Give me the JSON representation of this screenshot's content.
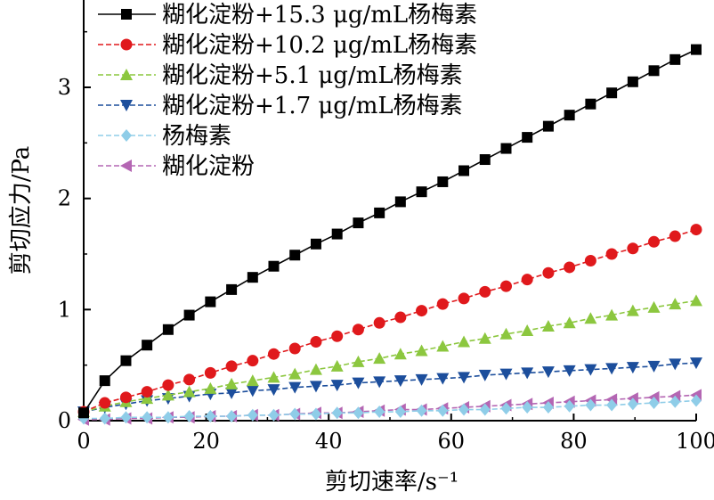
{
  "chart_data": {
    "type": "line",
    "title": "",
    "xlabel": "剪切速率/s⁻¹",
    "ylabel": "剪切应力/Pa",
    "xlim": [
      0,
      100
    ],
    "ylim": [
      0,
      3.6
    ],
    "xticks": [
      "0",
      "20",
      "40",
      "60",
      "80",
      "100"
    ],
    "yticks": [
      "0",
      "1",
      "2",
      "3"
    ],
    "legend_position": "top-left",
    "grid": false,
    "x": [
      0,
      3.45,
      6.9,
      10.34,
      13.79,
      17.24,
      20.69,
      24.14,
      27.59,
      31.03,
      34.48,
      37.93,
      41.38,
      44.83,
      48.28,
      51.72,
      55.17,
      58.62,
      62.07,
      65.52,
      68.97,
      72.41,
      75.86,
      79.31,
      82.76,
      86.21,
      89.66,
      93.1,
      96.55,
      100
    ],
    "series": [
      {
        "name": "糊化淀粉+15.3 μg/mL杨梅素",
        "marker": "square",
        "color": "#000000",
        "values": [
          0.07,
          0.36,
          0.54,
          0.68,
          0.82,
          0.95,
          1.07,
          1.18,
          1.29,
          1.39,
          1.49,
          1.59,
          1.68,
          1.78,
          1.87,
          1.97,
          2.06,
          2.15,
          2.25,
          2.35,
          2.45,
          2.55,
          2.65,
          2.75,
          2.85,
          2.95,
          3.05,
          3.15,
          3.25,
          3.34
        ]
      },
      {
        "name": "糊化淀粉+10.2 μg/mL杨梅素",
        "marker": "circle",
        "color": "#e0191c",
        "values": [
          0.08,
          0.16,
          0.21,
          0.26,
          0.32,
          0.37,
          0.43,
          0.49,
          0.54,
          0.6,
          0.65,
          0.71,
          0.76,
          0.82,
          0.88,
          0.93,
          0.99,
          1.05,
          1.1,
          1.16,
          1.21,
          1.27,
          1.33,
          1.38,
          1.44,
          1.5,
          1.55,
          1.61,
          1.66,
          1.72
        ]
      },
      {
        "name": "糊化淀粉+5.1 μg/mL杨梅素",
        "marker": "triangle-up",
        "color": "#8cc73f",
        "values": [
          0.08,
          0.13,
          0.17,
          0.2,
          0.23,
          0.26,
          0.29,
          0.33,
          0.36,
          0.39,
          0.42,
          0.46,
          0.49,
          0.53,
          0.56,
          0.6,
          0.63,
          0.67,
          0.71,
          0.74,
          0.78,
          0.81,
          0.85,
          0.88,
          0.92,
          0.95,
          0.99,
          1.02,
          1.05,
          1.08
        ]
      },
      {
        "name": "糊化淀粉+1.7 μg/mL杨梅素",
        "marker": "triangle-down",
        "color": "#1c4e9c",
        "values": [
          0.08,
          0.12,
          0.15,
          0.18,
          0.2,
          0.22,
          0.24,
          0.25,
          0.27,
          0.28,
          0.3,
          0.31,
          0.32,
          0.34,
          0.35,
          0.36,
          0.37,
          0.38,
          0.39,
          0.41,
          0.42,
          0.43,
          0.44,
          0.45,
          0.46,
          0.47,
          0.48,
          0.49,
          0.51,
          0.52
        ]
      },
      {
        "name": "杨梅素",
        "marker": "diamond",
        "color": "#8fcde8",
        "values": [
          0.02,
          0.02,
          0.03,
          0.03,
          0.03,
          0.04,
          0.04,
          0.04,
          0.05,
          0.05,
          0.06,
          0.06,
          0.07,
          0.07,
          0.08,
          0.08,
          0.09,
          0.09,
          0.1,
          0.1,
          0.11,
          0.12,
          0.12,
          0.13,
          0.14,
          0.14,
          0.15,
          0.16,
          0.17,
          0.18
        ]
      },
      {
        "name": "糊化淀粉",
        "marker": "triangle-left",
        "color": "#b466b3",
        "values": [
          0.01,
          0.01,
          0.02,
          0.02,
          0.03,
          0.03,
          0.04,
          0.04,
          0.05,
          0.05,
          0.06,
          0.07,
          0.07,
          0.08,
          0.09,
          0.1,
          0.1,
          0.11,
          0.12,
          0.13,
          0.14,
          0.15,
          0.16,
          0.17,
          0.18,
          0.19,
          0.2,
          0.21,
          0.22,
          0.23
        ]
      }
    ]
  }
}
